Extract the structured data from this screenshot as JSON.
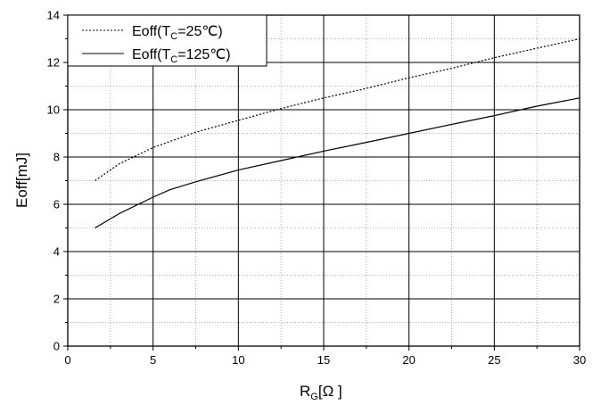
{
  "chart_data": {
    "type": "line",
    "xlabel": {
      "main": "R",
      "sub": "G",
      "rest": "[Ω  ]"
    },
    "ylabel": "Eoff[mJ]",
    "xlim": [
      0,
      30
    ],
    "ylim": [
      0,
      14
    ],
    "x_ticks": [
      "0",
      "5",
      "10",
      "15",
      "20",
      "25",
      "30"
    ],
    "y_ticks": [
      "0",
      "2",
      "4",
      "6",
      "8",
      "10",
      "12",
      "14"
    ],
    "grid": true,
    "legend_position": "top-left",
    "series": [
      {
        "name": "Eoff(TC=25℃)",
        "legend": {
          "pre": "Eoff(T",
          "sub": "C",
          "post": "=25℃)"
        },
        "style": "dotted",
        "color": "#000000",
        "x": [
          1.6,
          3,
          5,
          7.5,
          10,
          12.5,
          15,
          17.5,
          20,
          22.5,
          25,
          27.5,
          30
        ],
        "y": [
          7.0,
          7.7,
          8.4,
          9.05,
          9.55,
          10.05,
          10.5,
          10.9,
          11.35,
          11.75,
          12.2,
          12.6,
          13.0
        ]
      },
      {
        "name": "Eoff(TC=125℃)",
        "legend": {
          "pre": "Eoff(T",
          "sub": "C",
          "post": "=125℃)"
        },
        "style": "solid",
        "color": "#000000",
        "x": [
          1.6,
          3,
          5,
          6,
          7.5,
          10,
          12.5,
          15,
          17.5,
          20,
          22.5,
          25,
          27.5,
          30
        ],
        "y": [
          5.0,
          5.6,
          6.3,
          6.62,
          6.95,
          7.45,
          7.85,
          8.25,
          8.62,
          9.0,
          9.38,
          9.75,
          10.15,
          10.5
        ]
      }
    ]
  }
}
